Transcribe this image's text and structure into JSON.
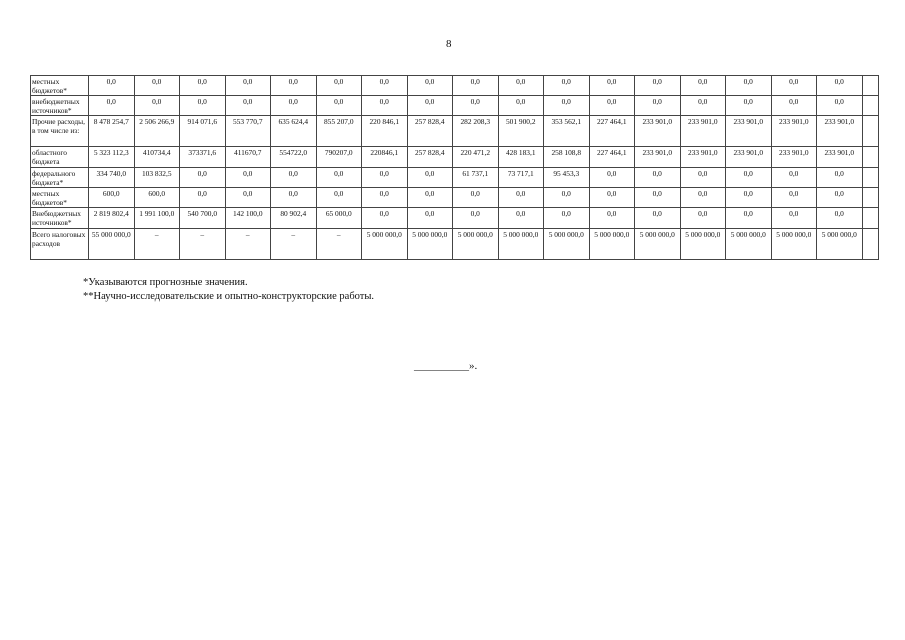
{
  "page_number": "8",
  "table": {
    "rows": [
      {
        "label": "местных бюджетов*",
        "values": [
          "0,0",
          "0,0",
          "0,0",
          "0,0",
          "0,0",
          "0,0",
          "0,0",
          "0,0",
          "0,0",
          "0,0",
          "0,0",
          "0,0",
          "0,0",
          "0,0",
          "0,0",
          "0,0",
          "0,0"
        ]
      },
      {
        "label": "внебюджетных источников*",
        "values": [
          "0,0",
          "0,0",
          "0,0",
          "0,0",
          "0,0",
          "0,0",
          "0,0",
          "0,0",
          "0,0",
          "0,0",
          "0,0",
          "0,0",
          "0,0",
          "0,0",
          "0,0",
          "0,0",
          "0,0"
        ]
      },
      {
        "label": "Прочие расходы, в том числе из:",
        "values": [
          "8 478 254,7",
          "2 506 266,9",
          "914 071,6",
          "553 770,7",
          "635 624,4",
          "855 207,0",
          "220 846,1",
          "257 828,4",
          "282 208,3",
          "501 900,2",
          "353 562,1",
          "227 464,1",
          "233 901,0",
          "233 901,0",
          "233 901,0",
          "233 901,0",
          "233 901,0"
        ]
      },
      {
        "label": "областного бюджета",
        "values": [
          "5 323 112,3",
          "410734,4",
          "373371,6",
          "411670,7",
          "554722,0",
          "790207,0",
          "220846,1",
          "257 828,4",
          "220 471,2",
          "428 183,1",
          "258 108,8",
          "227 464,1",
          "233 901,0",
          "233 901,0",
          "233 901,0",
          "233 901,0",
          "233 901,0"
        ]
      },
      {
        "label": "федерального бюджета*",
        "values": [
          "334 740,0",
          "103 832,5",
          "0,0",
          "0,0",
          "0,0",
          "0,0",
          "0,0",
          "0,0",
          "61 737,1",
          "73 717,1",
          "95 453,3",
          "0,0",
          "0,0",
          "0,0",
          "0,0",
          "0,0",
          "0,0"
        ]
      },
      {
        "label": "местных бюджетов*",
        "values": [
          "600,0",
          "600,0",
          "0,0",
          "0,0",
          "0,0",
          "0,0",
          "0,0",
          "0,0",
          "0,0",
          "0,0",
          "0,0",
          "0,0",
          "0,0",
          "0,0",
          "0,0",
          "0,0",
          "0,0"
        ]
      },
      {
        "label": "Внебюджетных источников*",
        "values": [
          "2 819 802,4",
          "1 991 100,0",
          "540 700,0",
          "142 100,0",
          "80 902,4",
          "65 000,0",
          "0,0",
          "0,0",
          "0,0",
          "0,0",
          "0,0",
          "0,0",
          "0,0",
          "0,0",
          "0,0",
          "0,0",
          "0,0"
        ]
      },
      {
        "label": "Всего налоговых расходов",
        "values": [
          "55 000 000,0",
          "–",
          "–",
          "–",
          "–",
          "–",
          "5 000 000,0",
          "5 000 000,0",
          "5 000 000,0",
          "5 000 000,0",
          "5 000 000,0",
          "5 000 000,0",
          "5 000 000,0",
          "5 000 000,0",
          "5 000 000,0",
          "5 000 000,0",
          "5 000 000,0"
        ]
      }
    ]
  },
  "footnotes": [
    "*Указываются прогнозные значения.",
    "**Научно-исследовательские и опытно-конструкторские работы."
  ],
  "closing": "__________»."
}
